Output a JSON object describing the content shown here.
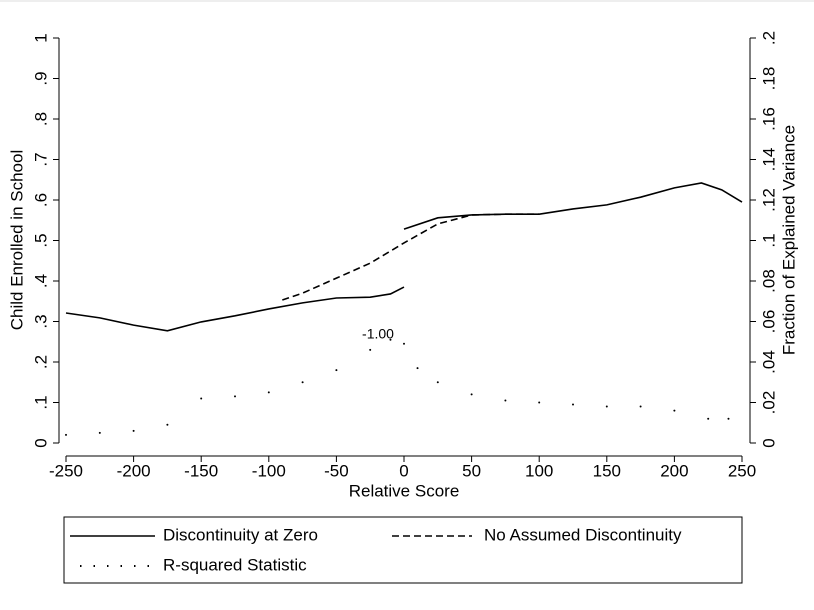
{
  "chart_data": {
    "type": "line",
    "annotation": "-1.00",
    "xlabel": "Relative Score",
    "ylabel": "Child Enrolled in School",
    "y2label": "Fraction of Explained Variance",
    "xlim": [
      -250,
      250
    ],
    "xticks": [
      -250,
      -200,
      -150,
      -100,
      -50,
      0,
      50,
      100,
      150,
      200,
      250
    ],
    "ylim": [
      0,
      1
    ],
    "yticks": [
      0,
      {
        "value": 0.1,
        "label": ".1"
      },
      {
        "value": 0.2,
        "label": ".2"
      },
      {
        "value": 0.3,
        "label": ".3"
      },
      {
        "value": 0.4,
        "label": ".4"
      },
      {
        "value": 0.5,
        "label": ".5"
      },
      {
        "value": 0.6,
        "label": ".6"
      },
      {
        "value": 0.7,
        "label": ".7"
      },
      {
        "value": 0.8,
        "label": ".8"
      },
      {
        "value": 0.9,
        "label": ".9"
      },
      1
    ],
    "y2lim": [
      0,
      0.2
    ],
    "y2ticks": [
      0,
      {
        "value": 0.02,
        "label": ".02"
      },
      {
        "value": 0.04,
        "label": ".04"
      },
      {
        "value": 0.06,
        "label": ".06"
      },
      {
        "value": 0.08,
        "label": ".08"
      },
      {
        "value": 0.1,
        "label": ".1"
      },
      {
        "value": 0.12,
        "label": ".12"
      },
      {
        "value": 0.14,
        "label": ".14"
      },
      {
        "value": 0.16,
        "label": ".16"
      },
      {
        "value": 0.18,
        "label": ".18"
      },
      {
        "value": 0.2,
        "label": ".2"
      }
    ],
    "series": [
      {
        "name": "Discontinuity at Zero",
        "color": "#000000",
        "style": "solid",
        "x": [
          -250,
          -225,
          -200,
          -175,
          -150,
          -125,
          -100,
          -75,
          -50,
          -25,
          -10,
          0,
          0,
          0,
          25,
          50,
          75,
          100,
          125,
          150,
          175,
          200,
          220,
          235,
          250
        ],
        "values": [
          0.321,
          0.309,
          0.291,
          0.277,
          0.299,
          0.314,
          0.331,
          0.346,
          0.358,
          0.36,
          0.368,
          0.385,
          null,
          0.528,
          0.556,
          0.563,
          0.565,
          0.565,
          0.578,
          0.588,
          0.607,
          0.63,
          0.642,
          0.625,
          0.595
        ]
      },
      {
        "name": "No Assumed Discontinuity",
        "color": "#000000",
        "style": "dashed",
        "x": [
          -90,
          -75,
          -50,
          -25,
          0,
          25,
          50,
          75,
          100
        ],
        "values": [
          0.353,
          0.37,
          0.407,
          0.444,
          0.494,
          0.541,
          0.563,
          0.565,
          0.565
        ]
      },
      {
        "name": "R-squared Statistic",
        "color": "#000000",
        "style": "dotted",
        "axis": "y2",
        "x": [
          -250,
          -225,
          -200,
          -175,
          -150,
          -125,
          -100,
          -75,
          -50,
          -25,
          -10,
          0,
          10,
          25,
          50,
          75,
          100,
          125,
          150,
          175,
          200,
          225,
          240
        ],
        "values": [
          0.004,
          0.005,
          0.006,
          0.009,
          0.022,
          0.023,
          0.025,
          0.03,
          0.036,
          0.046,
          0.051,
          0.049,
          0.037,
          0.03,
          0.024,
          0.021,
          0.02,
          0.019,
          0.018,
          0.018,
          0.016,
          0.012,
          0.012
        ]
      }
    ]
  }
}
